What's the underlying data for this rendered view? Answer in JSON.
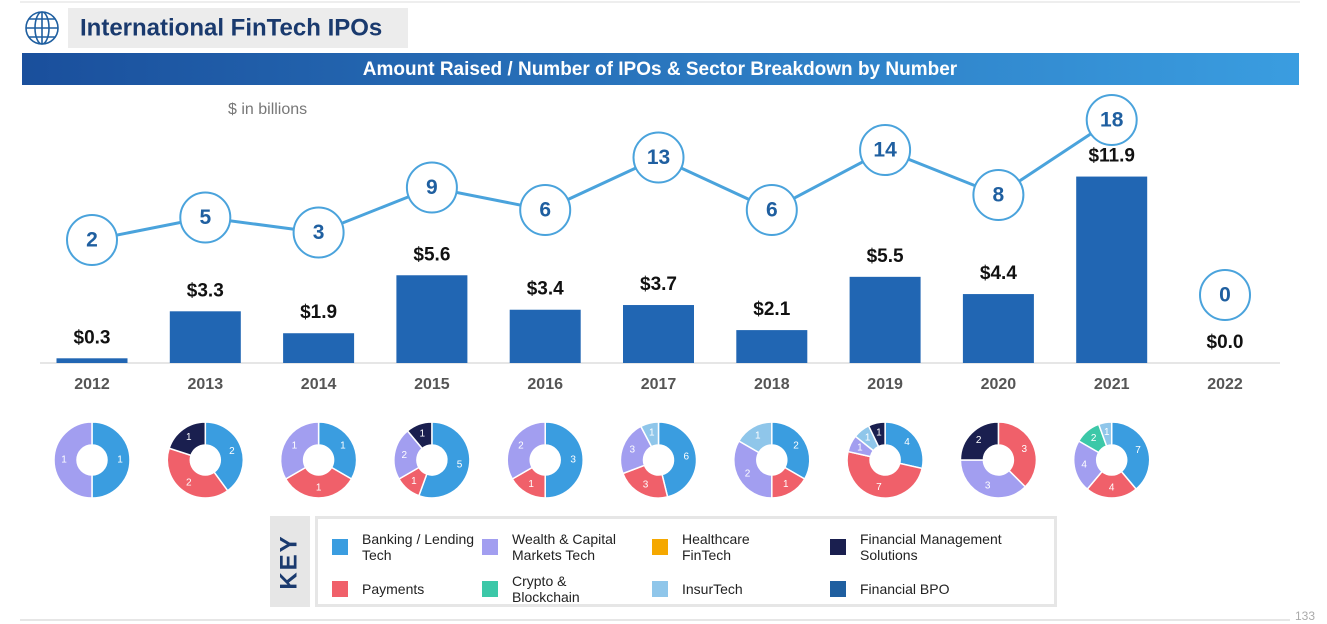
{
  "header": {
    "title": "International FinTech IPOs",
    "banner": "Amount Raised / Number of IPOs & Sector Breakdown by Number",
    "page_number": "133"
  },
  "chart_data": {
    "type": "bar",
    "unit_label": "$ in billions",
    "categories": [
      "2012",
      "2013",
      "2014",
      "2015",
      "2016",
      "2017",
      "2018",
      "2019",
      "2020",
      "2021",
      "2022"
    ],
    "values": [
      0.3,
      3.3,
      1.9,
      5.6,
      3.4,
      3.7,
      2.1,
      5.5,
      4.4,
      11.9,
      0.0
    ],
    "value_labels": [
      "$0.3",
      "$3.3",
      "$1.9",
      "$5.6",
      "$3.4",
      "$3.7",
      "$2.1",
      "$5.5",
      "$4.4",
      "$11.9",
      "$0.0"
    ],
    "color": "#2166b3",
    "ylim": [
      0,
      12
    ],
    "ipo_counts": {
      "type": "line",
      "values": [
        2,
        5,
        3,
        9,
        6,
        13,
        6,
        14,
        8,
        18,
        0
      ],
      "color": "#4aa3dc",
      "y2lim": [
        0,
        18
      ]
    },
    "sector_breakdown": {
      "type": "pie",
      "key_label": "KEY",
      "series": [
        {
          "name": "Banking / Lending Tech",
          "color": "#3a9de0",
          "values": [
            1,
            2,
            1,
            5,
            3,
            6,
            2,
            4,
            null,
            7,
            null
          ]
        },
        {
          "name": "Payments",
          "color": "#f0606a",
          "values": [
            null,
            2,
            1,
            1,
            1,
            3,
            1,
            7,
            3,
            4,
            null
          ]
        },
        {
          "name": "Wealth & Capital Markets Tech",
          "color": "#a29ef0",
          "values": [
            1,
            null,
            1,
            2,
            2,
            3,
            2,
            1,
            3,
            4,
            null
          ]
        },
        {
          "name": "Crypto & Blockchain",
          "color": "#3cc8a8",
          "values": [
            null,
            null,
            null,
            null,
            null,
            null,
            null,
            null,
            null,
            2,
            null
          ]
        },
        {
          "name": "Healthcare FinTech",
          "color": "#f5a800",
          "values": [
            null,
            null,
            null,
            null,
            null,
            null,
            null,
            null,
            null,
            null,
            null
          ]
        },
        {
          "name": "InsurTech",
          "color": "#8fc6ea",
          "values": [
            null,
            null,
            null,
            null,
            null,
            1,
            1,
            1,
            null,
            1,
            null
          ]
        },
        {
          "name": "Financial Management Solutions",
          "color": "#1a1f4f",
          "values": [
            null,
            1,
            null,
            1,
            null,
            null,
            null,
            1,
            2,
            null,
            null
          ]
        },
        {
          "name": "Financial BPO",
          "color": "#1f5fa0",
          "values": [
            null,
            null,
            null,
            null,
            null,
            null,
            null,
            null,
            null,
            null,
            null
          ]
        }
      ]
    }
  }
}
